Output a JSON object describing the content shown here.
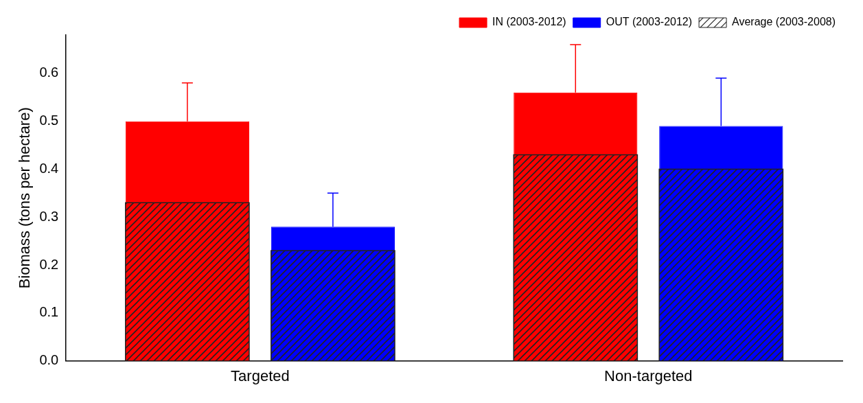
{
  "chart_data": {
    "type": "bar",
    "categories": [
      "Targeted",
      "Non-targeted"
    ],
    "y_label": "Biomass (tons per hectare)",
    "ylim": [
      0,
      0.68
    ],
    "yticks": [
      {
        "value": 0,
        "label": "0.0"
      },
      0.1,
      0.2,
      0.3,
      0.4,
      0.5,
      0.6
    ],
    "grid": false,
    "legend": "top-right",
    "average_label": "Average (2003-2008)",
    "series": [
      {
        "name": "IN (2003-2012)",
        "color": "#ff0000",
        "values": [
          0.5,
          0.56
        ],
        "average": [
          0.33,
          0.43
        ],
        "error": [
          0.08,
          0.1
        ]
      },
      {
        "name": "OUT (2003-2012)",
        "color": "#0000ff",
        "values": [
          0.28,
          0.49
        ],
        "average": [
          0.23,
          0.4
        ],
        "error": [
          0.07,
          0.1
        ]
      }
    ]
  }
}
